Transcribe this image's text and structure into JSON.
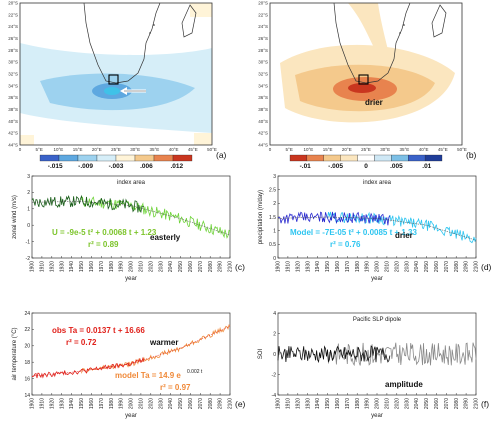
{
  "maps": [
    {
      "panel": "(a)",
      "lat_labels": [
        "20°S",
        "22°S",
        "24°S",
        "26°S",
        "28°S",
        "30°S",
        "32°S",
        "34°S",
        "36°S",
        "38°S",
        "40°S",
        "42°S",
        "44°S"
      ],
      "lon_labels": [
        "0",
        "5°E",
        "10°E",
        "15°E",
        "20°E",
        "25°E",
        "30°E",
        "35°E",
        "40°E",
        "45°E",
        "50°E"
      ],
      "colorbar_labels": [
        "-.015",
        "-.009",
        "-.003",
        ".006",
        ".012"
      ],
      "colorbar_colors": [
        "#3a62c9",
        "#5ea8e0",
        "#9dd2ef",
        "#d6eef8",
        "#fff4d8",
        "#f4c98c",
        "#e8834e",
        "#c9361f"
      ],
      "annotation": ""
    },
    {
      "panel": "(b)",
      "lat_labels": [
        "20°S",
        "22°S",
        "24°S",
        "26°S",
        "28°S",
        "30°S",
        "32°S",
        "34°S",
        "36°S",
        "38°S",
        "40°S",
        "42°S",
        "44°S"
      ],
      "lon_labels": [
        "0",
        "5°E",
        "10°E",
        "15°E",
        "20°E",
        "25°E",
        "30°E",
        "35°E",
        "40°E",
        "45°E",
        "50°E"
      ],
      "colorbar_labels": [
        "-.01",
        "-.005",
        "0",
        ".005",
        ".01"
      ],
      "colorbar_colors": [
        "#c9361f",
        "#e8834e",
        "#f4c98c",
        "#fbe6bf",
        "#ffffff",
        "#cfe8f5",
        "#7cbfe6",
        "#3a62c9",
        "#1f3d99"
      ],
      "annotation": "drier"
    }
  ],
  "chart_data": [
    {
      "panel": "(c)",
      "type": "line",
      "title": "index area",
      "ylabel": "zonal wind (m/s)",
      "xlabel": "year",
      "xlim": [
        1900,
        2100
      ],
      "ylim": [
        -2,
        3
      ],
      "yticks": [
        -2,
        -1,
        0,
        1,
        2,
        3
      ],
      "xticks": [
        1900,
        1910,
        1920,
        1930,
        1940,
        1950,
        1960,
        1970,
        1980,
        1990,
        2000,
        2010,
        2020,
        2030,
        2040,
        2050,
        2060,
        2070,
        2080,
        2090,
        2100
      ],
      "equation": "U = -9e-5 t² + 0.0068 t + 1.23",
      "r2": "r² = 0.89",
      "annotation": "easterly",
      "obs_color": "#1a5e1a",
      "model_color": "#6fd33a",
      "eq_color": "#7cc42a",
      "obs_years": [
        1900,
        2013
      ],
      "model_years": [
        1950,
        2100
      ],
      "trend_points": [
        [
          1900,
          1.4
        ],
        [
          1950,
          1.45
        ],
        [
          2000,
          1.2
        ],
        [
          2050,
          0.4
        ],
        [
          2100,
          -0.6
        ]
      ],
      "noise": 0.35
    },
    {
      "panel": "(d)",
      "type": "line",
      "title": "index area",
      "ylabel": "precipitation (m/day)",
      "xlabel": "year",
      "xlim": [
        1900,
        2100
      ],
      "ylim": [
        0,
        3
      ],
      "yticks": [
        0,
        0.5,
        1,
        1.5,
        2,
        2.5,
        3
      ],
      "xticks": [
        1900,
        1910,
        1920,
        1930,
        1940,
        1950,
        1960,
        1970,
        1980,
        1990,
        2000,
        2010,
        2020,
        2030,
        2040,
        2050,
        2060,
        2070,
        2080,
        2090,
        2100
      ],
      "equation": "Model = -7E-05 t² + 0.0085 t + 1.33",
      "r2": "r² = 0.76",
      "annotation": "drier",
      "obs_color": "#2a2acf",
      "model_color": "#2ec5f0",
      "eq_color": "#2ec5f0",
      "obs_years": [
        1900,
        2013
      ],
      "model_years": [
        1950,
        2100
      ],
      "trend_points": [
        [
          1900,
          1.45
        ],
        [
          1950,
          1.5
        ],
        [
          2000,
          1.45
        ],
        [
          2050,
          1.2
        ],
        [
          2100,
          0.65
        ]
      ],
      "noise": 0.2
    },
    {
      "panel": "(e)",
      "type": "line",
      "title": "",
      "ylabel": "air temperature (°C)",
      "xlabel": "year",
      "xlim": [
        1900,
        2100
      ],
      "ylim": [
        14,
        24
      ],
      "yticks": [
        14,
        16,
        18,
        20,
        22,
        24
      ],
      "xticks": [
        1900,
        1910,
        1920,
        1930,
        1940,
        1950,
        1960,
        1970,
        1980,
        1990,
        2000,
        2010,
        2020,
        2030,
        2040,
        2050,
        2060,
        2070,
        2080,
        2090,
        2100
      ],
      "obs_equation": "obs Ta = 0.0137 t + 16.66",
      "obs_r2": "r² = 0.72",
      "model_equation": "model Ta = 14.9 e",
      "model_exp": "0.002 t",
      "model_r2": "r² = 0.97",
      "annotation": "warmer",
      "obs_color": "#e0201a",
      "model_color": "#f08a3a",
      "obs_years": [
        1900,
        2013
      ],
      "model_years": [
        1950,
        2100
      ],
      "trend_points": [
        [
          1900,
          16.3
        ],
        [
          1950,
          16.9
        ],
        [
          2000,
          17.8
        ],
        [
          2050,
          19.7
        ],
        [
          2100,
          22.4
        ]
      ],
      "noise": 0.3
    },
    {
      "panel": "(f)",
      "type": "line",
      "title": "Pacific SLP dipole",
      "ylabel": "SOI",
      "xlabel": "year",
      "xlim": [
        1900,
        2100
      ],
      "ylim": [
        -4,
        4
      ],
      "yticks": [
        -4,
        -2,
        0,
        2,
        4
      ],
      "xticks": [
        1900,
        1910,
        1920,
        1930,
        1940,
        1950,
        1960,
        1970,
        1980,
        1990,
        2000,
        2010,
        2020,
        2030,
        2040,
        2050,
        2060,
        2070,
        2080,
        2090,
        2100
      ],
      "annotation": "amplitude",
      "obs_color": "#111111",
      "model_color": "#8a8a8a",
      "obs_years": [
        1900,
        2013
      ],
      "model_years": [
        1950,
        2100
      ],
      "trend_points": [
        [
          1900,
          0
        ],
        [
          2100,
          0
        ]
      ],
      "noise": 0.8
    }
  ]
}
